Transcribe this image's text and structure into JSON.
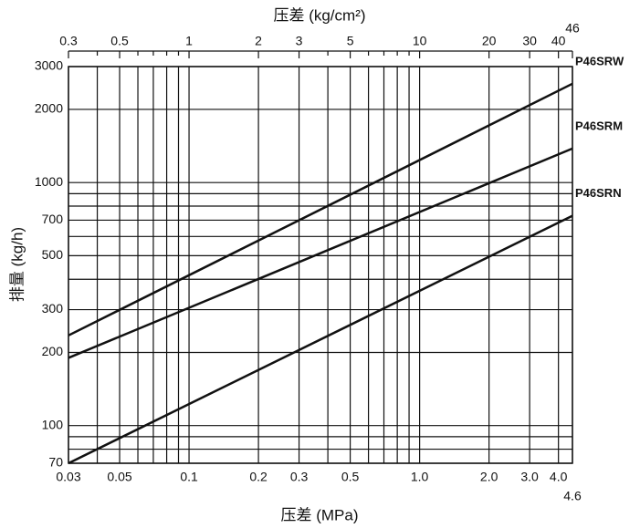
{
  "chart_data": {
    "type": "line",
    "title": "压差 (kg/cm²)",
    "x_label": "压差 (MPa)",
    "y_label": "排量 (kg/h)",
    "log_x": true,
    "log_y": true,
    "grid": true,
    "x": [
      0.03,
      4.6
    ],
    "series": [
      {
        "name": "P46SRW",
        "color": "#111111",
        "values": [
          235,
          2550
        ]
      },
      {
        "name": "P46SRM",
        "color": "#111111",
        "values": [
          190,
          1380
        ]
      },
      {
        "name": "P46SRN",
        "color": "#111111",
        "values": [
          70,
          730
        ]
      }
    ],
    "xlim": [
      0.03,
      4.6
    ],
    "xticks": [
      0.03,
      0.05,
      0.1,
      0.2,
      0.3,
      0.5,
      {
        "value": 1,
        "label": "1.0"
      },
      {
        "value": 2,
        "label": "2.0"
      },
      {
        "value": 3,
        "label": "3.0"
      },
      {
        "value": 4,
        "label": "4.0"
      },
      4.6
    ],
    "x_minor_ticks": [
      0.04,
      0.06,
      0.07,
      0.08,
      0.09,
      0.4,
      0.6,
      0.7,
      0.8,
      0.9
    ],
    "x2lim": [
      0.3,
      46
    ],
    "x2ticks": [
      0.3,
      0.5,
      1,
      2,
      3,
      5,
      10,
      20,
      30,
      40,
      46
    ],
    "x2_minor_ticks": [
      0.4,
      0.6,
      0.7,
      0.8,
      0.9,
      4,
      6,
      7,
      8,
      9
    ],
    "ylim": [
      70,
      3000
    ],
    "yticks": [
      70,
      100,
      200,
      300,
      500,
      700,
      1000,
      2000,
      3000
    ],
    "y_minor_ticks": [
      80,
      90,
      400,
      600,
      800,
      900
    ]
  }
}
